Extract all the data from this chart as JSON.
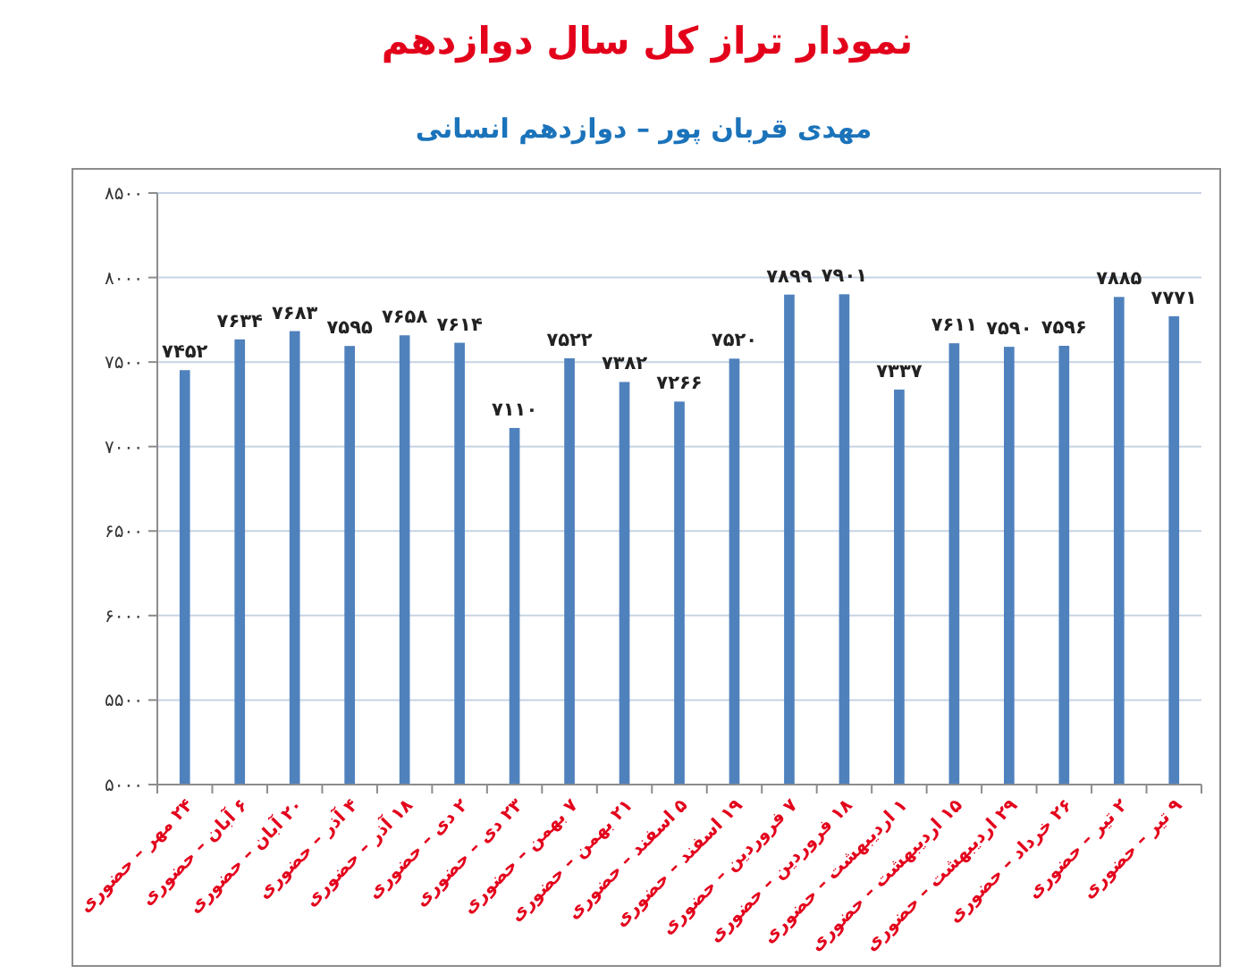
{
  "chart_data": {
    "type": "bar",
    "title": "نمودار تراز کل سال دوازدهم",
    "subtitle": "مهدی قربان پور – دوازدهم انسانی",
    "categories": [
      "۲۴ مهر – حضوری",
      "۶ آبان – حضوری",
      "۲۰ آبان – حضوری",
      "۴ آذر – حضوری",
      "۱۸ آذر – حضوری",
      "۲ دی – حضوری",
      "۲۳ دی – حضوری",
      "۷ بهمن – حضوری",
      "۲۱ بهمن – حضوری",
      "۵ اسفند – حضوری",
      "۱۹ اسفند – حضوری",
      "۷ فروردین – حضوری",
      "۱۸ فروردین – حضوری",
      "۱ اردیبهشت – حضوری",
      "۱۵ اردیبهشت – حضوری",
      "۲۹ اردیبهشت – حضوری",
      "۲۶ خرداد – حضوری",
      "۲ تیر – حضوری",
      "۹ تیر – حضوری"
    ],
    "values": [
      7452,
      7634,
      7683,
      7595,
      7658,
      7614,
      7110,
      7522,
      7382,
      7266,
      7520,
      7899,
      7901,
      7337,
      7611,
      7590,
      7596,
      7885,
      7771
    ],
    "value_labels": [
      "۷۴۵۲",
      "۷۶۳۴",
      "۷۶۸۳",
      "۷۵۹۵",
      "۷۶۵۸",
      "۷۶۱۴",
      "۷۱۱۰",
      "۷۵۲۲",
      "۷۳۸۲",
      "۷۲۶۶",
      "۷۵۲۰",
      "۷۸۹۹",
      "۷۹۰۱",
      "۷۳۳۷",
      "۷۶۱۱",
      "۷۵۹۰",
      "۷۵۹۶",
      "۷۸۸۵",
      "۷۷۷۱"
    ],
    "color": "#4f81bd",
    "ylim": [
      5000,
      8500
    ],
    "yticks": [
      {
        "value": 5000,
        "label": "۵۰۰۰"
      },
      {
        "value": 5500,
        "label": "۵۵۰۰"
      },
      {
        "value": 6000,
        "label": "۶۰۰۰"
      },
      {
        "value": 6500,
        "label": "۶۵۰۰"
      },
      {
        "value": 7000,
        "label": "۷۰۰۰"
      },
      {
        "value": 7500,
        "label": "۷۵۰۰"
      },
      {
        "value": 8000,
        "label": "۸۰۰۰"
      },
      {
        "value": 8500,
        "label": "۸۵۰۰"
      }
    ],
    "grid": "y"
  }
}
